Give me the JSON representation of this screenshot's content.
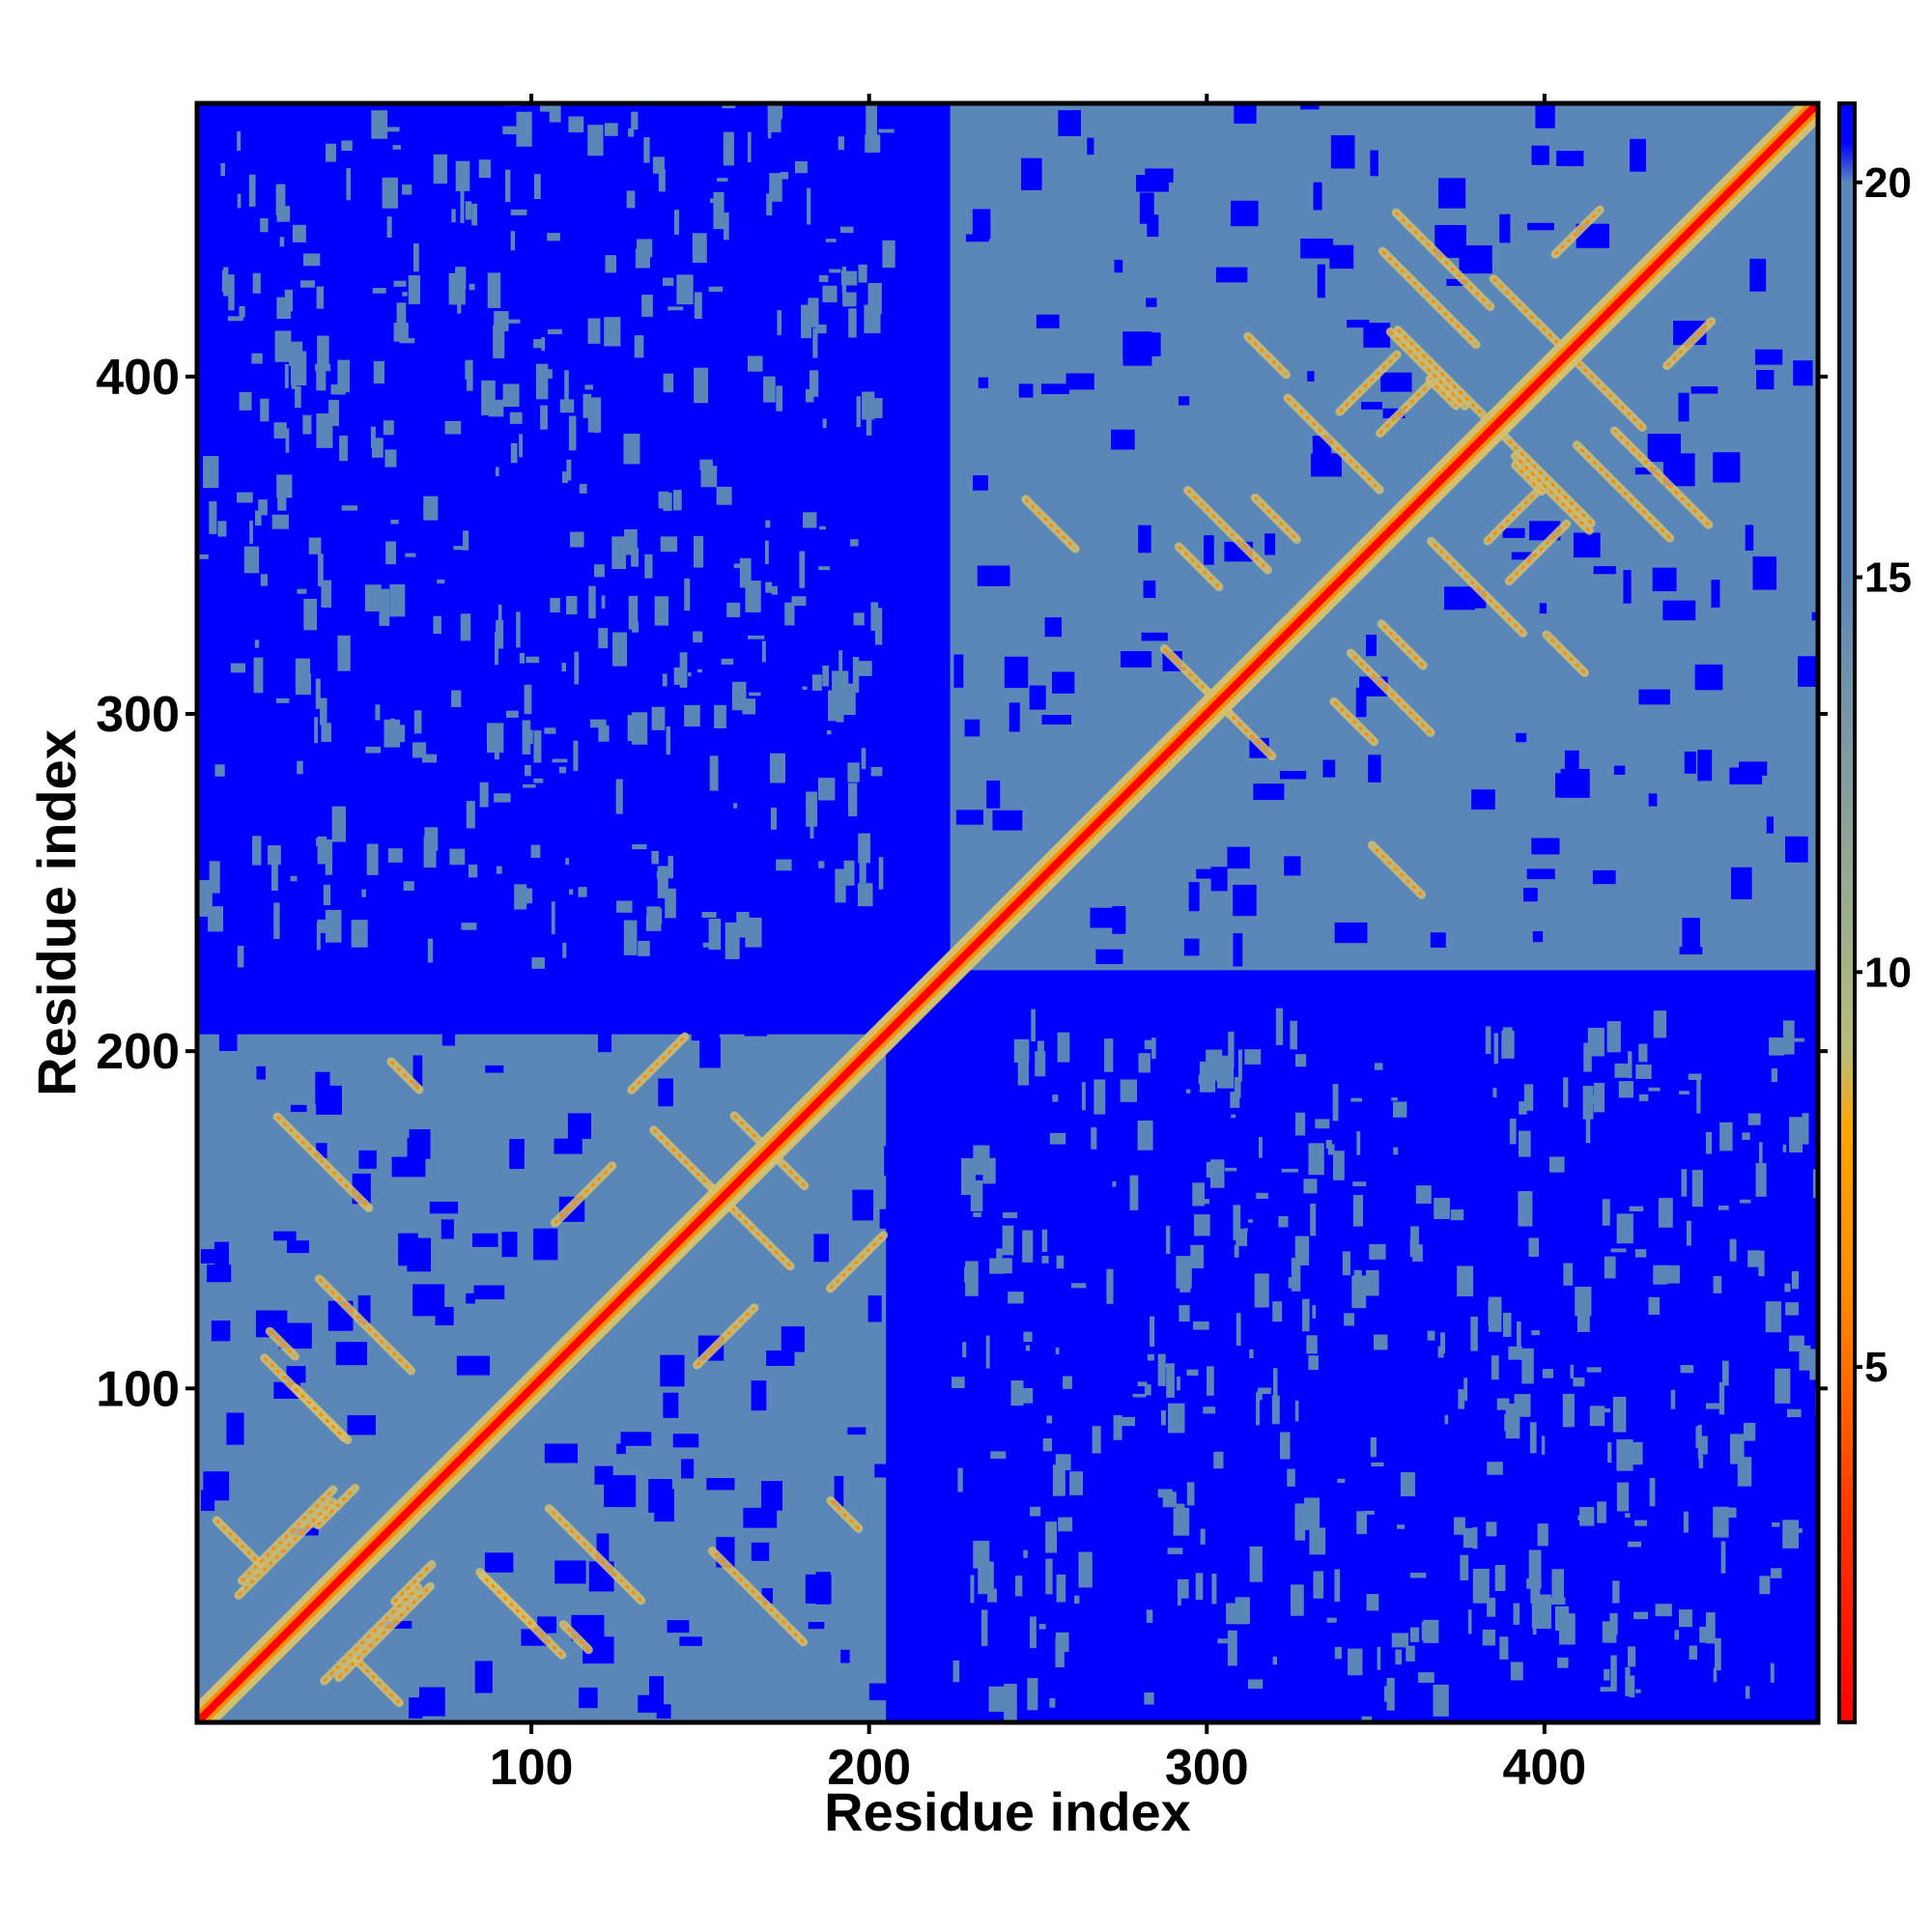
{
  "chart_data": {
    "type": "heatmap",
    "title": "",
    "xlabel": "Residue index",
    "ylabel": "Residue index",
    "n_residues": 481,
    "xlim": [
      1,
      481
    ],
    "ylim": [
      1,
      481
    ],
    "x_ticks": [
      100,
      200,
      300,
      400
    ],
    "y_ticks": [
      100,
      200,
      300,
      400
    ],
    "domains": [
      {
        "start": 1,
        "end": 205
      },
      {
        "start": 224,
        "end": 481
      }
    ],
    "colorbar": {
      "range": [
        0.5,
        21
      ],
      "ticks": [
        5,
        10,
        15,
        20
      ],
      "stops": [
        {
          "value": 0.5,
          "color": "#ff0000"
        },
        {
          "value": 3,
          "color": "#ff3300"
        },
        {
          "value": 6,
          "color": "#ff8c00"
        },
        {
          "value": 8,
          "color": "#ffa500"
        },
        {
          "value": 9,
          "color": "#b8bc7a"
        },
        {
          "value": 15,
          "color": "#5b86b8"
        },
        {
          "value": 20,
          "color": "#5b86b8"
        },
        {
          "value": 20.5,
          "color": "#0000ff"
        },
        {
          "value": 21,
          "color": "#0000ff"
        }
      ]
    },
    "colors": {
      "far": "#0000ff",
      "mid": "#5b86b8",
      "near": "#d2c070",
      "close": "#ff8c00",
      "contact": "#ff0000"
    }
  }
}
